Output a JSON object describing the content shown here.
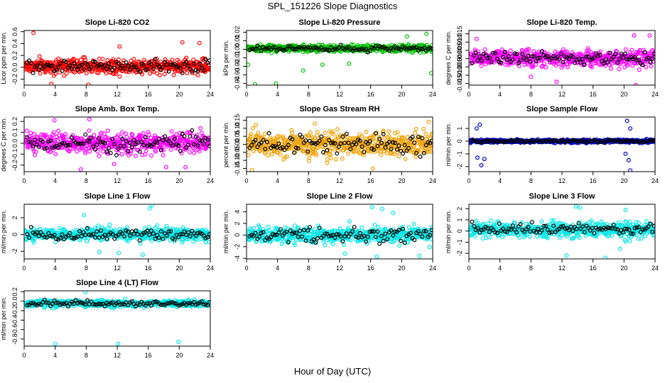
{
  "figure": {
    "title": "SPL_151226  Slope Diagnostics",
    "x_axis_title": "Hour of Day (UTC)"
  },
  "chart_data": [
    {
      "type": "scatter",
      "title": "Slope Li-820 CO2",
      "ylabel": "Licor ppm per min.",
      "xlim": [
        0,
        24
      ],
      "ylim": [
        -0.3,
        0.62
      ],
      "xticks": [
        0,
        4,
        8,
        12,
        16,
        20,
        24
      ],
      "yticks": [
        -0.2,
        0,
        0.2,
        0.4,
        0.6
      ],
      "ytick_labels": [
        "-0.2",
        "0.0",
        "0.2",
        "0.4",
        "0.6"
      ],
      "color": "#ff0000",
      "base": 0.02,
      "spread": 0.09,
      "outliers": [
        [
          1.2,
          0.58
        ],
        [
          3.5,
          -0.28
        ],
        [
          8.3,
          -0.29
        ],
        [
          12.3,
          0.35
        ],
        [
          20.4,
          0.42
        ],
        [
          22.6,
          0.41
        ]
      ]
    },
    {
      "type": "scatter",
      "title": "Slope Li-820 Pressure",
      "ylabel": "kPa per min.",
      "xlim": [
        0,
        24
      ],
      "ylim": [
        -0.042,
        0.022
      ],
      "xticks": [
        0,
        4,
        8,
        12,
        16,
        20,
        24
      ],
      "yticks": [
        -0.04,
        -0.03,
        -0.02,
        -0.01,
        0,
        0.01,
        0.02
      ],
      "ytick_labels": [
        "-0.04",
        "-0.03",
        "-0.02",
        "-0.01",
        "0.00",
        "0.01",
        "0.02"
      ],
      "color": "#00c000",
      "base": 0.001,
      "spread": 0.003,
      "outliers": [
        [
          0.2,
          -0.018
        ],
        [
          1.1,
          -0.041
        ],
        [
          3.8,
          -0.04
        ],
        [
          7.3,
          -0.025
        ],
        [
          9.8,
          -0.018
        ],
        [
          13.2,
          -0.017
        ],
        [
          20.7,
          0.015
        ],
        [
          23.8,
          -0.028
        ],
        [
          23.2,
          0.018
        ]
      ]
    },
    {
      "type": "scatter",
      "title": "Slope Li-820 Temp.",
      "ylabel": "degrees C per min.",
      "xlim": [
        0,
        24
      ],
      "ylim": [
        -0.016,
        0.017
      ],
      "xticks": [
        0,
        4,
        8,
        12,
        16,
        20,
        24
      ],
      "yticks": [
        -0.015,
        -0.01,
        -0.005,
        0,
        0.005,
        0.01,
        0.015
      ],
      "ytick_labels": [
        "-0.015",
        "-0.010",
        "-0.005",
        "0.000",
        "0.005",
        "0.010",
        "0.015"
      ],
      "color": "#ff00ff",
      "base": 0.0003,
      "spread": 0.0035,
      "outliers": [
        [
          1.0,
          0.012
        ],
        [
          8.0,
          -0.011
        ],
        [
          11.3,
          -0.014
        ],
        [
          21.3,
          0.014
        ],
        [
          23.3,
          0.014
        ],
        [
          21.5,
          -0.016
        ]
      ]
    },
    {
      "type": "scatter",
      "title": "Slope Amb. Box Temp.",
      "ylabel": "degrees C per min.",
      "xlim": [
        0,
        24
      ],
      "ylim": [
        -0.26,
        0.24
      ],
      "xticks": [
        0,
        4,
        8,
        12,
        16,
        20,
        24
      ],
      "yticks": [
        -0.2,
        -0.1,
        0,
        0.1,
        0.2
      ],
      "ytick_labels": [
        "-0.2",
        "-0.1",
        "0.0",
        "0.1",
        "0.2"
      ],
      "color": "#ff00ff",
      "base": 0.0,
      "spread": 0.065,
      "outliers": [
        [
          3.9,
          0.21
        ],
        [
          8.4,
          0.22
        ],
        [
          7.3,
          -0.24
        ],
        [
          11.6,
          -0.19
        ],
        [
          18.3,
          -0.22
        ],
        [
          20.8,
          -0.22
        ]
      ]
    },
    {
      "type": "scatter",
      "title": "Slope Gas Stream RH",
      "ylabel": "percent per min.",
      "xlim": [
        0,
        24
      ],
      "ylim": [
        -0.17,
        0.17
      ],
      "xticks": [
        0,
        4,
        8,
        12,
        16,
        20,
        24
      ],
      "yticks": [
        -0.15,
        -0.1,
        -0.05,
        0,
        0.05,
        0.1,
        0.15
      ],
      "ytick_labels": [
        "-0.15",
        "-0.10",
        "-0.05",
        "0.00",
        "0.05",
        "0.10",
        "0.15"
      ],
      "color": "#f0a000",
      "base": 0.0,
      "spread": 0.055,
      "outliers": [
        [
          1.2,
          0.12
        ],
        [
          8.8,
          0.13
        ],
        [
          23.5,
          0.14
        ],
        [
          0.7,
          -0.16
        ],
        [
          16.3,
          -0.15
        ]
      ]
    },
    {
      "type": "scatter",
      "title": "Slope Sample Flow",
      "ylabel": "ml/min per min.",
      "xlim": [
        0,
        24
      ],
      "ylim": [
        -2.4,
        1.9
      ],
      "xticks": [
        0,
        4,
        8,
        12,
        16,
        20,
        24
      ],
      "yticks": [
        -2,
        -1,
        0,
        1
      ],
      "ytick_labels": [
        "-2",
        "-1",
        "0",
        "1"
      ],
      "color": "#0000cc",
      "base": 0.0,
      "spread": 0.09,
      "outliers": [
        [
          1.0,
          1.0
        ],
        [
          1.4,
          1.3
        ],
        [
          1.1,
          -1.3
        ],
        [
          1.6,
          -1.9
        ],
        [
          2.0,
          -1.4
        ],
        [
          20.4,
          1.6
        ],
        [
          20.8,
          1.0
        ],
        [
          20.6,
          -1.5
        ],
        [
          20.8,
          -2.3
        ],
        [
          20.2,
          -1.0
        ]
      ]
    },
    {
      "type": "scatter",
      "title": "Slope Line 1 Flow",
      "ylabel": "ml/min per min.",
      "xlim": [
        0,
        24
      ],
      "ylim": [
        -2.9,
        3.6
      ],
      "xticks": [
        0,
        4,
        8,
        12,
        16,
        20,
        24
      ],
      "yticks": [
        -2,
        0,
        2
      ],
      "ytick_labels": [
        "-2",
        "0",
        "2"
      ],
      "color": "#00e8e8",
      "base": 0.0,
      "spread": 0.55,
      "outliers": [
        [
          16.5,
          3.5
        ],
        [
          16.2,
          3.1
        ],
        [
          15.3,
          -2.4
        ],
        [
          12.2,
          -2.2
        ],
        [
          9.7,
          -2.1
        ],
        [
          7.7,
          2.3
        ]
      ]
    },
    {
      "type": "scatter",
      "title": "Slope Line 2 Flow",
      "ylabel": "ml/min per min.",
      "xlim": [
        0,
        24
      ],
      "ylim": [
        -4.1,
        5.3
      ],
      "xticks": [
        0,
        4,
        8,
        12,
        16,
        20,
        24
      ],
      "yticks": [
        -4,
        -2,
        0,
        2,
        4
      ],
      "ytick_labels": [
        "-4",
        "-2",
        "0",
        "2",
        "4"
      ],
      "color": "#00e8e8",
      "base": 0.0,
      "spread": 1.0,
      "outliers": [
        [
          16.2,
          4.8
        ],
        [
          17.5,
          4.5
        ],
        [
          12.7,
          -3.2
        ],
        [
          16.8,
          -3.7
        ],
        [
          22.3,
          -3.6
        ],
        [
          18.9,
          3.8
        ]
      ]
    },
    {
      "type": "scatter",
      "title": "Slope Line 3 Flow",
      "ylabel": "ml/min per min.",
      "xlim": [
        0,
        24
      ],
      "ylim": [
        -2.5,
        2.4
      ],
      "xticks": [
        0,
        4,
        8,
        12,
        16,
        20,
        24
      ],
      "yticks": [
        -2,
        -1,
        0,
        1,
        2
      ],
      "ytick_labels": [
        "-2",
        "-1",
        "0",
        "1",
        "2"
      ],
      "color": "#00e8e8",
      "base": 0.1,
      "spread": 0.5,
      "outliers": [
        [
          13.8,
          2.2
        ],
        [
          14.3,
          2.1
        ],
        [
          12.6,
          -2.2
        ],
        [
          17.6,
          -2.4
        ],
        [
          20.2,
          1.9
        ],
        [
          19.5,
          -1.6
        ]
      ]
    },
    {
      "type": "scatter",
      "title": "Slope Line 4 (LT) Flow",
      "ylabel": "ml/min per min.",
      "xlim": [
        0,
        24
      ],
      "ylim": [
        -0.95,
        0.22
      ],
      "xticks": [
        0,
        4,
        8,
        12,
        16,
        20,
        24
      ],
      "yticks": [
        -0.8,
        -0.6,
        -0.4,
        -0.2,
        0,
        0.2
      ],
      "ytick_labels": [
        "-0.8",
        "-0.6",
        "-0.4",
        "-0.2",
        "0.0",
        "0.2"
      ],
      "color": "#00e8e8",
      "base": -0.05,
      "spread": 0.05,
      "outliers": [
        [
          4.0,
          -0.9
        ],
        [
          12.1,
          -0.9
        ],
        [
          19.9,
          -0.86
        ],
        [
          7.9,
          0.19
        ]
      ]
    }
  ]
}
